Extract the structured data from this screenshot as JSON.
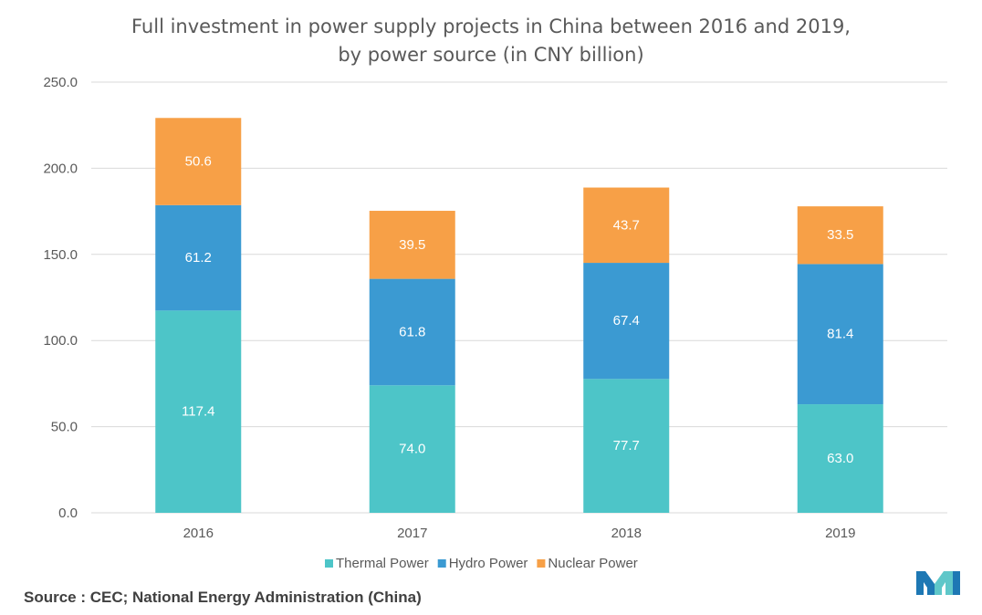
{
  "source": "Source : CEC; National Energy Administration (China)",
  "chart_data": {
    "type": "bar",
    "stacked": true,
    "title": "Full investment in power supply projects in China between 2016 and 2019,",
    "subtitle": "by power source (in CNY billion)",
    "categories": [
      "2016",
      "2017",
      "2018",
      "2019"
    ],
    "series": [
      {
        "name": "Thermal Power",
        "color": "#4dc5c8",
        "values": [
          117.4,
          74.0,
          77.7,
          63.0
        ],
        "labels": [
          "117.4",
          "74.0",
          "77.7",
          "63.0"
        ]
      },
      {
        "name": "Hydro Power",
        "color": "#3b9ad2",
        "values": [
          61.2,
          61.8,
          67.4,
          81.4
        ],
        "labels": [
          "61.2",
          "61.8",
          "67.4",
          "81.4"
        ]
      },
      {
        "name": "Nuclear Power",
        "color": "#f7a047",
        "values": [
          50.6,
          39.5,
          43.7,
          33.5
        ],
        "labels": [
          "50.6",
          "39.5",
          "43.7",
          "33.5"
        ]
      }
    ],
    "ylim": [
      0,
      250
    ],
    "yticks": [
      "0.0",
      "50.0",
      "100.0",
      "150.0",
      "200.0",
      "250.0"
    ],
    "grid": true,
    "legend": "bottom-center"
  },
  "logo": {
    "name": "mordor-intelligence-logo",
    "colors": [
      "#1e78b4",
      "#5fc7c9"
    ]
  }
}
